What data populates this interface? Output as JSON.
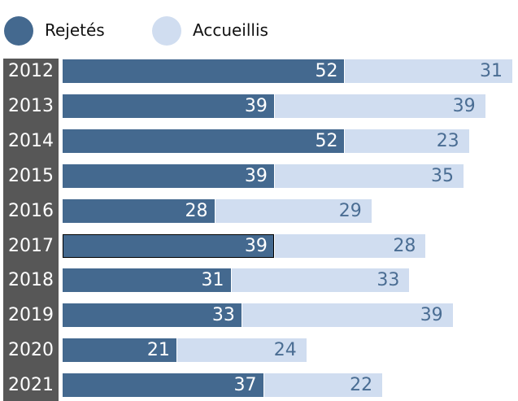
{
  "chart_data": {
    "type": "bar",
    "orientation": "horizontal",
    "stacked": true,
    "categories": [
      "2012",
      "2013",
      "2014",
      "2015",
      "2016",
      "2017",
      "2018",
      "2019",
      "2020",
      "2021"
    ],
    "series": [
      {
        "name": "Rejetés",
        "color": "#44698f",
        "values": [
          52,
          39,
          52,
          39,
          28,
          39,
          31,
          33,
          21,
          37
        ]
      },
      {
        "name": "Accueillis",
        "color": "#d0ddf0",
        "values": [
          31,
          39,
          23,
          35,
          29,
          28,
          33,
          39,
          24,
          22
        ]
      }
    ],
    "xlim": [
      0,
      83
    ],
    "legend": "top-left",
    "grid": false,
    "highlighted_category": "2017"
  }
}
